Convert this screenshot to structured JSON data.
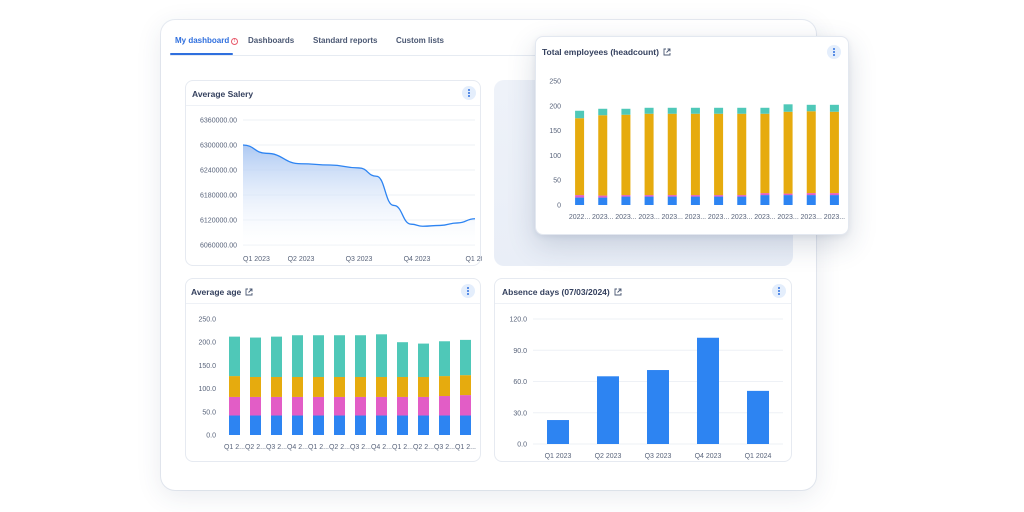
{
  "tabs": [
    {
      "label": "My dashboard",
      "active": true,
      "badge": "!"
    },
    {
      "label": "Dashboards"
    },
    {
      "label": "Standard reports"
    },
    {
      "label": "Custom lists"
    }
  ],
  "colors": {
    "accent": "#2f6fde",
    "blue": "#2d84f2",
    "pink": "#e25dc6",
    "yellow": "#e6ab0e",
    "teal": "#4fc8b8"
  },
  "cards": {
    "avg_salary": {
      "title": "Average Salery"
    },
    "total_employees": {
      "title": "Total employees (headcount)"
    },
    "avg_age": {
      "title": "Average age"
    },
    "absence": {
      "title": "Absence days (07/03/2024)"
    }
  },
  "chart_data": [
    {
      "id": "avg_salary",
      "type": "area",
      "title": "Average Salery",
      "categories": [
        "Q1 2023",
        "Q2 2023",
        "Q3 2023",
        "Q4 2023",
        "Q1 20"
      ],
      "yticks": [
        "6060000.00",
        "6120000.00",
        "6180000.00",
        "6240000.00",
        "6300000.00",
        "6360000.00"
      ],
      "ylim": [
        6060000,
        6360000
      ],
      "x": [
        0,
        0.4,
        1,
        1.5,
        2,
        2.3,
        2.6,
        2.9,
        3.1,
        3.4,
        3.7,
        4
      ],
      "values": [
        6300000,
        6280000,
        6255000,
        6252000,
        6245000,
        6225000,
        6155000,
        6110000,
        6105000,
        6107000,
        6113000,
        6123000
      ]
    },
    {
      "id": "total_employees",
      "type": "bar",
      "stacked": true,
      "title": "Total employees (headcount)",
      "categories": [
        "2022...",
        "2023...",
        "2023...",
        "2023...",
        "2023...",
        "2023...",
        "2023...",
        "2023...",
        "2023...",
        "2023...",
        "2023...",
        "2023..."
      ],
      "yticks": [
        "0",
        "50",
        "100",
        "150",
        "200",
        "250"
      ],
      "ylim": [
        0,
        250
      ],
      "series": [
        {
          "values": [
            15,
            15,
            17,
            17,
            17,
            17,
            17,
            17,
            20,
            20,
            20,
            20
          ],
          "color": "#2d84f2"
        },
        {
          "values": [
            5,
            4,
            3,
            3,
            3,
            3,
            3,
            3,
            4,
            3,
            4,
            4
          ],
          "color": "#e25dc6"
        },
        {
          "values": [
            155,
            162,
            162,
            164,
            164,
            164,
            164,
            164,
            160,
            165,
            165,
            164
          ],
          "color": "#e6ab0e"
        },
        {
          "values": [
            15,
            13,
            12,
            12,
            12,
            12,
            12,
            12,
            12,
            15,
            13,
            14
          ],
          "color": "#4fc8b8"
        }
      ]
    },
    {
      "id": "avg_age",
      "type": "bar",
      "stacked": true,
      "title": "Average age",
      "categories": [
        "Q1 2...",
        "Q2 2...",
        "Q3 2...",
        "Q4 2...",
        "Q1 2...",
        "Q2 2...",
        "Q3 2...",
        "Q4 2...",
        "Q1 2...",
        "Q2 2...",
        "Q3 2...",
        "Q1 2..."
      ],
      "yticks": [
        "0.0",
        "50.0",
        "100.0",
        "150.0",
        "200.0",
        "250.0"
      ],
      "ylim": [
        0,
        250
      ],
      "series": [
        {
          "values": [
            42,
            42,
            42,
            42,
            42,
            42,
            42,
            42,
            42,
            42,
            42,
            42
          ],
          "color": "#2d84f2"
        },
        {
          "values": [
            40,
            40,
            40,
            40,
            40,
            40,
            40,
            40,
            40,
            40,
            42,
            44
          ],
          "color": "#e25dc6"
        },
        {
          "values": [
            45,
            43,
            43,
            43,
            43,
            43,
            43,
            43,
            43,
            43,
            43,
            43
          ],
          "color": "#e6ab0e"
        },
        {
          "values": [
            85,
            85,
            87,
            90,
            90,
            90,
            90,
            92,
            75,
            72,
            75,
            76
          ],
          "color": "#4fc8b8"
        }
      ]
    },
    {
      "id": "absence",
      "type": "bar",
      "title": "Absence days (07/03/2024)",
      "categories": [
        "Q1 2023",
        "Q2 2023",
        "Q3 2023",
        "Q4 2023",
        "Q1 2024"
      ],
      "yticks": [
        "0.0",
        "30.0",
        "60.0",
        "90.0",
        "120.0"
      ],
      "ylim": [
        0,
        120
      ],
      "values": [
        23,
        65,
        71,
        102,
        51
      ],
      "color": "#2d84f2"
    }
  ]
}
